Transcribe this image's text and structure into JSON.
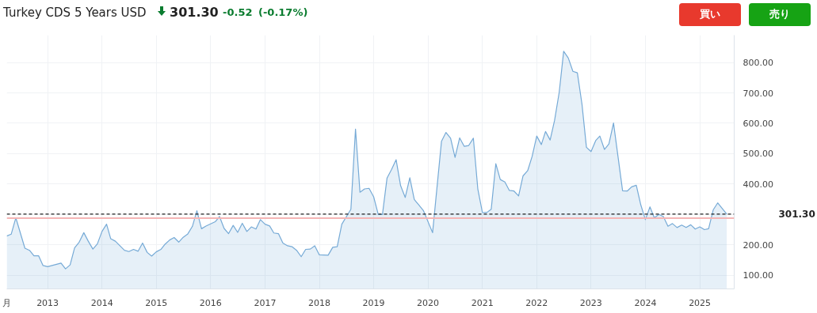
{
  "chart_data": {
    "type": "area",
    "title": "Turkey CDS 5 Years USD",
    "annotations": [
      "301.30",
      "-0.52",
      "(-0.17%)",
      "買い",
      "売り"
    ],
    "x": [
      "2012-04",
      "2012-05",
      "2012-06",
      "2012-08",
      "2012-09",
      "2012-10",
      "2012-11",
      "2012-12",
      "2013-01",
      "2013-04",
      "2013-05",
      "2013-06",
      "2013-07",
      "2013-08",
      "2013-09",
      "2013-10",
      "2013-11",
      "2013-12",
      "2014-01",
      "2014-02",
      "2014-03",
      "2014-04",
      "2014-06",
      "2014-07",
      "2014-08",
      "2014-09",
      "2014-10",
      "2014-11",
      "2014-12",
      "2015-01",
      "2015-02",
      "2015-03",
      "2015-04",
      "2015-05",
      "2015-06",
      "2015-07",
      "2015-08",
      "2015-09",
      "2015-10",
      "2015-11",
      "2015-12",
      "2016-02",
      "2016-03",
      "2016-04",
      "2016-05",
      "2016-06",
      "2016-07",
      "2016-08",
      "2016-09",
      "2016-10",
      "2016-11",
      "2016-12",
      "2017-01",
      "2017-02",
      "2017-03",
      "2017-04",
      "2017-05",
      "2017-06",
      "2017-07",
      "2017-08",
      "2017-09",
      "2017-10",
      "2017-11",
      "2017-12",
      "2018-01",
      "2018-03",
      "2018-04",
      "2018-05",
      "2018-06",
      "2018-08",
      "2018-09",
      "2018-10",
      "2018-11",
      "2018-12",
      "2019-01",
      "2019-02",
      "2019-03",
      "2019-04",
      "2019-05",
      "2019-06",
      "2019-07",
      "2019-08",
      "2019-09",
      "2019-10",
      "2019-11",
      "2019-12",
      "2020-02",
      "2020-04",
      "2020-05",
      "2020-06",
      "2020-07",
      "2020-08",
      "2020-09",
      "2020-10",
      "2020-11",
      "2020-12",
      "2021-01",
      "2021-02",
      "2021-03",
      "2021-04",
      "2021-05",
      "2021-06",
      "2021-07",
      "2021-08",
      "2021-09",
      "2021-10",
      "2021-11",
      "2021-12",
      "2022-01",
      "2022-02",
      "2022-03",
      "2022-04",
      "2022-05",
      "2022-06",
      "2022-07",
      "2022-08",
      "2022-09",
      "2022-10",
      "2022-11",
      "2022-12",
      "2023-01",
      "2023-02",
      "2023-03",
      "2023-04",
      "2023-05",
      "2023-06",
      "2023-07",
      "2023-08",
      "2023-09",
      "2023-10",
      "2023-11",
      "2023-12",
      "2024-01",
      "2024-02",
      "2024-03",
      "2024-04",
      "2024-05",
      "2024-06",
      "2024-07",
      "2024-08",
      "2024-09",
      "2024-10",
      "2024-11",
      "2024-12",
      "2025-01",
      "2025-02",
      "2025-03",
      "2025-04",
      "2025-05",
      "2025-07"
    ],
    "series": [
      {
        "color": "#76aad6",
        "values": [
          229,
          235,
          289,
          189,
          182,
          164,
          164,
          132,
          128,
          140,
          121,
          134,
          190,
          209,
          240,
          212,
          186,
          203,
          244,
          268,
          220,
          212,
          182,
          178,
          185,
          179,
          206,
          175,
          163,
          177,
          185,
          202,
          216,
          224,
          209,
          225,
          236,
          261,
          312,
          253,
          262,
          276,
          293,
          254,
          237,
          264,
          241,
          271,
          244,
          259,
          252,
          283,
          268,
          262,
          239,
          237,
          206,
          197,
          194,
          182,
          161,
          185,
          186,
          197,
          167,
          166,
          192,
          194,
          268,
          317,
          581,
          373,
          384,
          386,
          358,
          300,
          300,
          420,
          448,
          480,
          395,
          356,
          421,
          349,
          331,
          313,
          240,
          541,
          570,
          551,
          488,
          552,
          524,
          527,
          551,
          384,
          306,
          307,
          317,
          467,
          415,
          407,
          379,
          377,
          361,
          427,
          444,
          491,
          558,
          530,
          573,
          545,
          610,
          702,
          837,
          815,
          771,
          766,
          663,
          521,
          507,
          543,
          558,
          514,
          532,
          601,
          491,
          378,
          377,
          391,
          396,
          332,
          283,
          325,
          289,
          300,
          293,
          261,
          270,
          257,
          265,
          257,
          266,
          252,
          259,
          250,
          253,
          315,
          338,
          301.3
        ]
      }
    ],
    "xlim": [
      "2012-04",
      "2025-08-20"
    ],
    "xticks": [
      {
        "value": "2012-04",
        "label": "月"
      },
      {
        "value": "2013",
        "label": "2013"
      },
      {
        "value": "2014",
        "label": "2014"
      },
      {
        "value": "2015",
        "label": "2015"
      },
      {
        "value": "2016",
        "label": "2016"
      },
      {
        "value": "2017",
        "label": "2017"
      },
      {
        "value": "2018",
        "label": "2018"
      },
      {
        "value": "2019",
        "label": "2019"
      },
      {
        "value": "2020",
        "label": "2020"
      },
      {
        "value": "2021",
        "label": "2021"
      },
      {
        "value": "2022",
        "label": "2022"
      },
      {
        "value": "2023",
        "label": "2023"
      },
      {
        "value": "2024",
        "label": "2024"
      },
      {
        "value": "2025",
        "label": "2025"
      }
    ],
    "ylim": [
      55,
      890
    ],
    "yticks": [
      {
        "value": 100,
        "label": "100.00"
      },
      {
        "value": 200,
        "label": "200.00"
      },
      {
        "value": 300,
        "label": null
      },
      {
        "value": 400,
        "label": "400.00"
      },
      {
        "value": 500,
        "label": "500.00"
      },
      {
        "value": 600,
        "label": "600.00"
      },
      {
        "value": 700,
        "label": "700.00"
      },
      {
        "value": 800,
        "label": "800.00"
      }
    ],
    "ref_lines": [
      {
        "axis": "y",
        "value": 301.3,
        "label": "301.30",
        "color": "#222222",
        "line_style": "dashed"
      },
      {
        "axis": "y",
        "value": 288,
        "color": "#f5b5b5",
        "line_style": "solid"
      }
    ],
    "grid": true,
    "marker": "none",
    "line_style": "solid"
  }
}
